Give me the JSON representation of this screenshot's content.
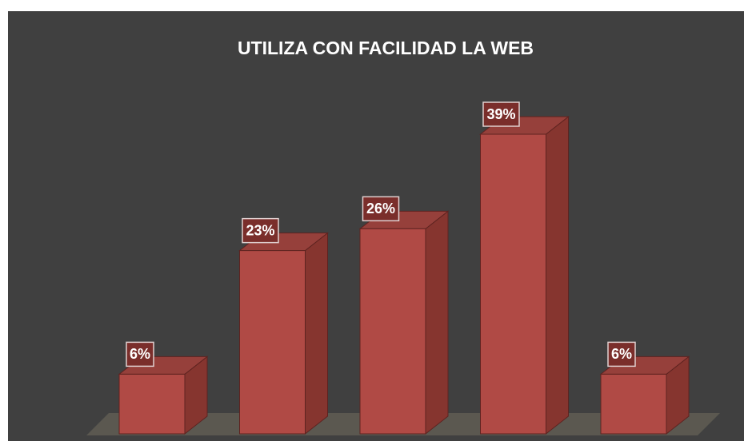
{
  "chart_data": {
    "type": "bar3d",
    "title": "UTILIZA CON FACILIDAD LA WEB",
    "categories": [
      null,
      null,
      null,
      null,
      null
    ],
    "values": [
      6,
      23,
      26,
      39,
      6
    ],
    "value_labels": [
      "6%",
      "23%",
      "26%",
      "39%",
      "6%"
    ],
    "color": "#b04a45"
  }
}
